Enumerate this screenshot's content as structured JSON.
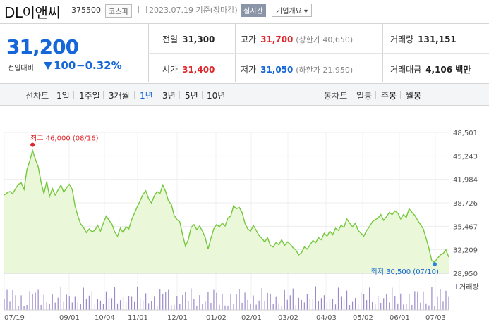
{
  "header": {
    "name": "DL이앤씨",
    "code": "375500",
    "market": "코스피",
    "date": "2023.07.19 기준(장마감)",
    "realtime": "실시간",
    "company_info": "기업개요 ▾"
  },
  "summary": {
    "price": "31,200",
    "change_label": "전일대비",
    "change": "100",
    "change_pct": "−0.32%",
    "prev_close_label": "전일",
    "prev_close": "31,300",
    "high_label": "고가",
    "high": "31,700",
    "upper_limit": "(상한가 40,650)",
    "volume_label": "거래량",
    "volume": "131,151",
    "open_label": "시가",
    "open": "31,400",
    "low_label": "저가",
    "low": "31,050",
    "lower_limit": "(하한가 21,950)",
    "amount_label": "거래대금",
    "amount": "4,106 백만"
  },
  "tabs": {
    "line_label": "선차트",
    "periods": [
      "1일",
      "1주일",
      "3개월",
      "1년",
      "3년",
      "5년",
      "10년"
    ],
    "active_period": "1년",
    "candle_label": "봉차트",
    "candle_periods": [
      "일봉",
      "주봉",
      "월봉"
    ]
  },
  "colors": {
    "line": "#74c83c",
    "fill": "#eaf7d8",
    "up": "#e0262a",
    "down": "#1566d8",
    "volume": "#9b8ac9"
  },
  "chart_data": {
    "type": "area",
    "y_ticks": [
      "48,501",
      "45,243",
      "41,984",
      "38,726",
      "35,467",
      "32,209",
      "28,950"
    ],
    "ylim": [
      28950,
      48501
    ],
    "x_ticks": [
      "07/19",
      "09/01",
      "10/04",
      "11/01",
      "12/01",
      "01/02",
      "02/01",
      "03/02",
      "04/03",
      "05/02",
      "06/01",
      "07/03"
    ],
    "max_label": "최고 46,000 (08/16)",
    "min_label": "최저 30,500 (07/10)",
    "volume_label": "거래량",
    "values": [
      39800,
      40100,
      40300,
      40000,
      40700,
      41300,
      41500,
      40600,
      43300,
      44500,
      46000,
      44800,
      43700,
      41600,
      40000,
      41700,
      39600,
      40700,
      39800,
      40500,
      41200,
      40200,
      40800,
      41300,
      40600,
      38300,
      36900,
      35800,
      35300,
      34600,
      35100,
      34700,
      34900,
      35600,
      34800,
      35900,
      36900,
      36300,
      35800,
      34700,
      34100,
      35200,
      34600,
      35400,
      35100,
      36400,
      37300,
      38200,
      39000,
      39900,
      40400,
      39300,
      38700,
      39700,
      40300,
      40000,
      41200,
      40300,
      39000,
      38500,
      37000,
      36400,
      36100,
      34300,
      32700,
      33600,
      35300,
      35700,
      35000,
      35500,
      34800,
      33900,
      32300,
      33800,
      35100,
      35700,
      35400,
      35900,
      35500,
      36600,
      36900,
      38300,
      37900,
      38100,
      37400,
      35900,
      35100,
      34800,
      35600,
      34900,
      34200,
      33800,
      33300,
      33900,
      32800,
      32600,
      33200,
      32900,
      33600,
      32800,
      33300,
      33000,
      32500,
      32200,
      31500,
      31800,
      32600,
      32300,
      32900,
      33500,
      33200,
      33900,
      33600,
      34500,
      34100,
      34800,
      34300,
      35200,
      34900,
      35600,
      35300,
      36500,
      35900,
      35400,
      35900,
      34900,
      34500,
      34100,
      34900,
      35400,
      36100,
      36400,
      36600,
      37100,
      36300,
      36800,
      37400,
      37100,
      37600,
      37300,
      36500,
      37100,
      36700,
      37900,
      37400,
      37000,
      36300,
      35700,
      35100,
      33800,
      32400,
      30700,
      30500,
      31000,
      31500,
      31700,
      32200,
      31200
    ]
  }
}
